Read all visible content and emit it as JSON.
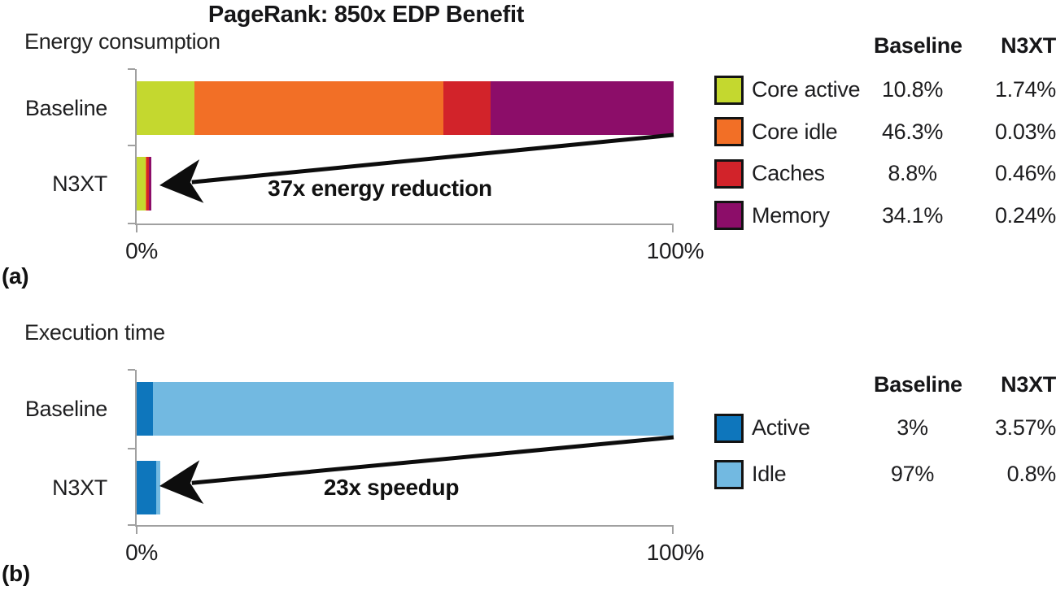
{
  "figure_title": "PageRank: 850x EDP Benefit",
  "style": {
    "axis_color": "#a0a0a0",
    "text_color": "#1d1d1f",
    "arrow_color": "#0d0d0d"
  },
  "chart_data": [
    {
      "type": "bar",
      "orientation": "horizontal",
      "stacked": true,
      "panel_label": "(a)",
      "title": "Energy consumption",
      "categories": [
        "Baseline",
        "N3XT"
      ],
      "xlim": [
        0,
        100
      ],
      "x_tick_labels": [
        "0%",
        "100%"
      ],
      "grid": false,
      "legend_position": "right",
      "series": [
        {
          "name": "Core active",
          "color": "#c4d82f",
          "values": [
            10.8,
            1.74
          ]
        },
        {
          "name": "Core idle",
          "color": "#f26f26",
          "values": [
            46.3,
            0.03
          ]
        },
        {
          "name": "Caches",
          "color": "#d2232a",
          "values": [
            8.8,
            0.46
          ]
        },
        {
          "name": "Memory",
          "color": "#8c0d69",
          "values": [
            34.1,
            0.24
          ]
        }
      ],
      "legend_table": {
        "headers": [
          "Baseline",
          "N3XT"
        ],
        "rows": [
          {
            "label": "Core active",
            "baseline": "10.8%",
            "n3xt": "1.74%"
          },
          {
            "label": "Core idle",
            "baseline": "46.3%",
            "n3xt": "0.03%"
          },
          {
            "label": "Caches",
            "baseline": "8.8%",
            "n3xt": "0.46%"
          },
          {
            "label": "Memory",
            "baseline": "34.1%",
            "n3xt": "0.24%"
          }
        ]
      },
      "annotation": "37x energy reduction"
    },
    {
      "type": "bar",
      "orientation": "horizontal",
      "stacked": true,
      "panel_label": "(b)",
      "title": "Execution time",
      "categories": [
        "Baseline",
        "N3XT"
      ],
      "xlim": [
        0,
        100
      ],
      "x_tick_labels": [
        "0%",
        "100%"
      ],
      "grid": false,
      "legend_position": "right",
      "series": [
        {
          "name": "Active",
          "color": "#0e76bc",
          "values": [
            3,
            3.57
          ]
        },
        {
          "name": "Idle",
          "color": "#72b9e1",
          "values": [
            97,
            0.8
          ]
        }
      ],
      "legend_table": {
        "headers": [
          "Baseline",
          "N3XT"
        ],
        "rows": [
          {
            "label": "Active",
            "baseline": "3%",
            "n3xt": "3.57%"
          },
          {
            "label": "Idle",
            "baseline": "97%",
            "n3xt": "0.8%"
          }
        ]
      },
      "annotation": "23x speedup"
    }
  ]
}
